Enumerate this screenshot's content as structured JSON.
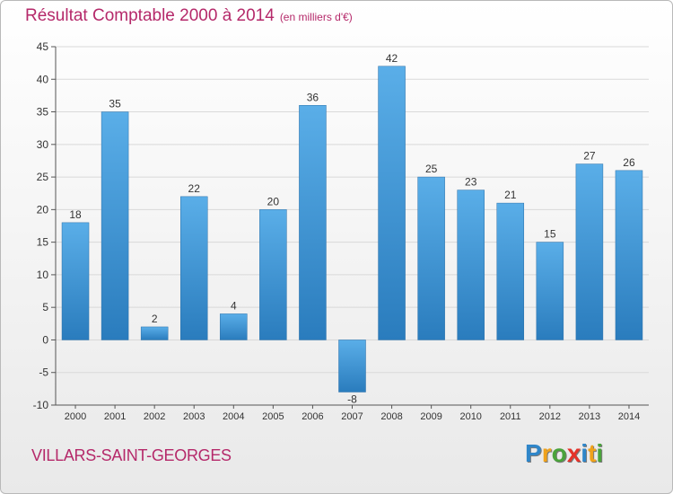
{
  "title": "Résultat Comptable 2000 à 2014",
  "unit": "(en milliers d'€)",
  "location": "VILLARS-SAINT-GEORGES",
  "brand": {
    "letters": [
      "P",
      "r",
      "o",
      "x",
      "i",
      "t",
      "i"
    ],
    "colors": [
      "#2f86c9",
      "#f0a21b",
      "#4aa33b",
      "#e5332a",
      "#2f86c9",
      "#f0a21b",
      "#4aa33b"
    ]
  },
  "colors": {
    "title": "#b5296a",
    "bar_light": "#5aaee8",
    "bar_dark": "#2a7cbd",
    "grid": "#d9d9d9"
  },
  "chart_data": {
    "type": "bar",
    "categories": [
      "2000",
      "2001",
      "2002",
      "2003",
      "2004",
      "2005",
      "2006",
      "2007",
      "2008",
      "2009",
      "2010",
      "2011",
      "2012",
      "2013",
      "2014"
    ],
    "values": [
      18,
      35,
      2,
      22,
      4,
      20,
      36,
      -8,
      42,
      25,
      23,
      21,
      15,
      27,
      26
    ],
    "title": "Résultat Comptable 2000 à 2014",
    "xlabel": "",
    "ylabel": "",
    "ylim": [
      -10,
      45
    ],
    "yticks": [
      -10,
      -5,
      0,
      5,
      10,
      15,
      20,
      25,
      30,
      35,
      40,
      45
    ],
    "grid": true,
    "legend": "none"
  }
}
